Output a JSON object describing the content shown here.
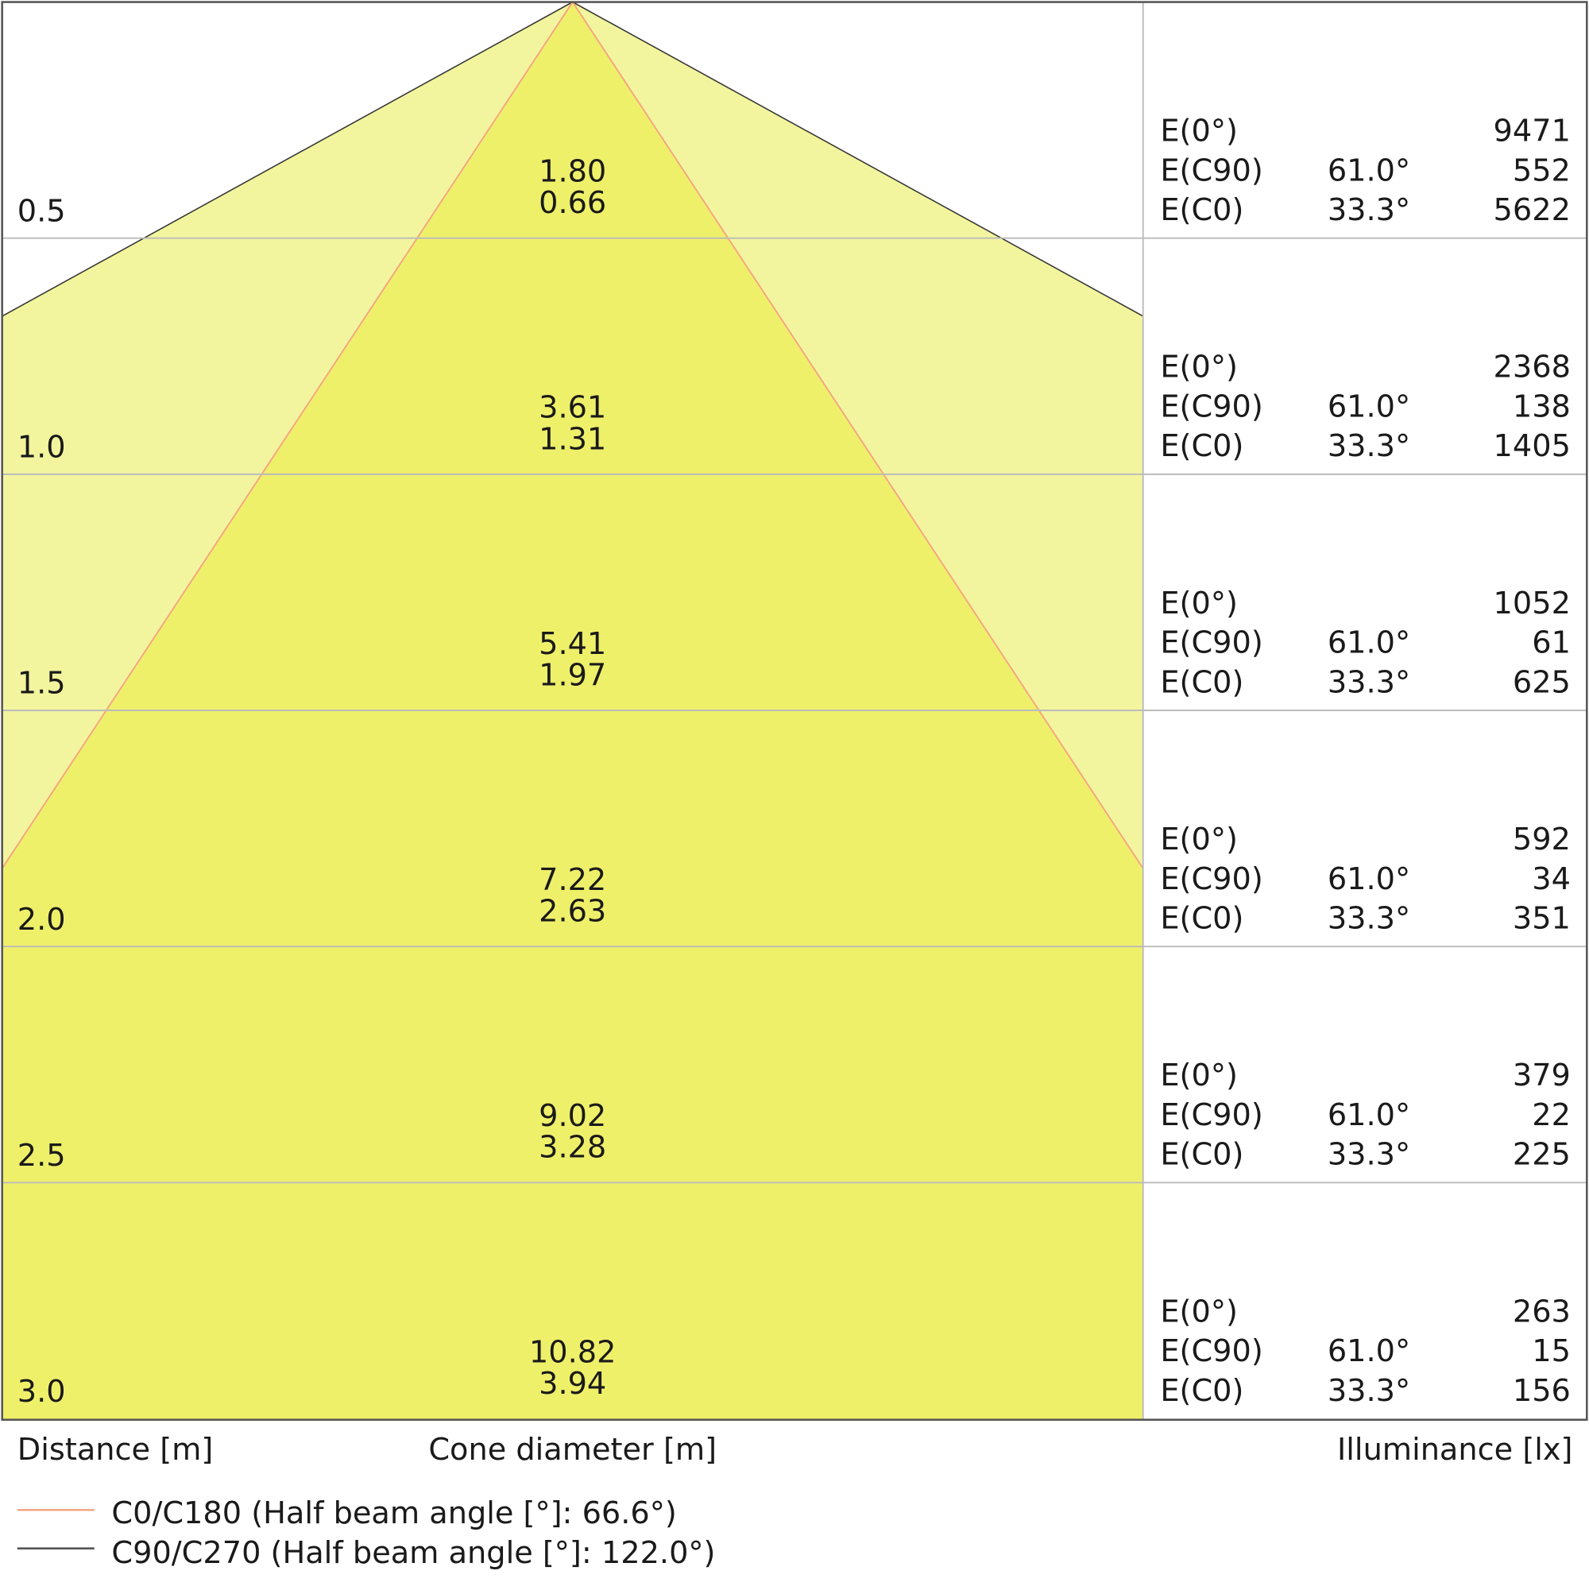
{
  "rows": [
    {
      "distance": "0.5",
      "c90_diameter": "1.80",
      "c0_diameter": "0.66",
      "e0": "9471",
      "ec90": "552",
      "ec0": "5622"
    },
    {
      "distance": "1.0",
      "c90_diameter": "3.61",
      "c0_diameter": "1.31",
      "e0": "2368",
      "ec90": "138",
      "ec0": "1405"
    },
    {
      "distance": "1.5",
      "c90_diameter": "5.41",
      "c0_diameter": "1.97",
      "e0": "1052",
      "ec90": "61",
      "ec0": "625"
    },
    {
      "distance": "2.0",
      "c90_diameter": "7.22",
      "c0_diameter": "2.63",
      "e0": "592",
      "ec90": "34",
      "ec0": "351"
    },
    {
      "distance": "2.5",
      "c90_diameter": "9.02",
      "c0_diameter": "3.28",
      "e0": "379",
      "ec90": "22",
      "ec0": "225"
    },
    {
      "distance": "3.0",
      "c90_diameter": "10.82",
      "c0_diameter": "3.94",
      "e0": "263",
      "ec90": "15",
      "ec0": "156"
    }
  ],
  "labels": {
    "e0": "E(0°)",
    "ec90": "E(C90)",
    "ec0": "E(C0)"
  },
  "angles": {
    "c90": "61.0°",
    "c0": "33.3°"
  },
  "footer": {
    "distance": "Distance [m]",
    "cone": "Cone diameter [m]",
    "illuminance": "Illuminance [lx]"
  },
  "legend": {
    "c0": "C0/C180 (Half beam angle [°]: 66.6°)",
    "c90": "C90/C270 (Half beam angle [°]: 122.0°)"
  }
}
